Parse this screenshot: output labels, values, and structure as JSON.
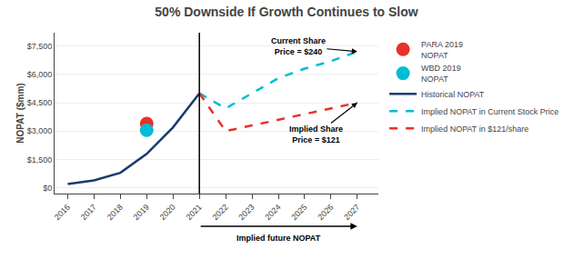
{
  "chart_data": {
    "type": "line",
    "title": "50% Downside If Growth Continues to Slow",
    "ylabel": "NOPAT ($mm)",
    "series": [
      {
        "name": "PARA 2019\nNOPAT",
        "type": "scatter",
        "marker": "circle",
        "color": "#e8312a",
        "x": [
          2019
        ],
        "values": [
          3400
        ]
      },
      {
        "name": "WBD 2019\nNOPAT",
        "type": "scatter",
        "marker": "circle",
        "color": "#00bcd4",
        "x": [
          2019
        ],
        "values": [
          3050
        ]
      },
      {
        "name": "Historical NOPAT",
        "type": "line",
        "line_style": "solid",
        "color": "#1a3a6b",
        "x": [
          2016,
          2017,
          2018,
          2019,
          2020,
          2021
        ],
        "values": [
          200,
          400,
          800,
          1800,
          3200,
          5000
        ]
      },
      {
        "name": "Implied NOPAT in Current Stock Price",
        "type": "line",
        "line_style": "dashed",
        "color": "#00bcd4",
        "x": [
          2021,
          2022,
          2023,
          2024,
          2025,
          2026,
          2027
        ],
        "values": [
          5000,
          4200,
          5000,
          5800,
          6300,
          6700,
          7200
        ]
      },
      {
        "name": "Implied NOPAT in $121/share",
        "type": "line",
        "line_style": "dashed",
        "color": "#e8312a",
        "x": [
          2021,
          2022,
          2023,
          2024,
          2025,
          2026,
          2027
        ],
        "values": [
          5000,
          3000,
          3300,
          3600,
          3900,
          4200,
          4500
        ]
      }
    ],
    "vline": 2021,
    "annotations": [
      {
        "text": "Current Share\nPrice = $240",
        "x": 2027,
        "y": 7200
      },
      {
        "text": "Implied Share\nPrice = $121",
        "x": 2027,
        "y": 4500
      },
      {
        "text": "Implied future NOPAT",
        "x": [
          2021,
          2027
        ]
      }
    ],
    "xlim": [
      2015.5,
      2027.8
    ],
    "xticks": [
      2016,
      2017,
      2018,
      2019,
      2020,
      2021,
      2022,
      2023,
      2024,
      2025,
      2026,
      2027
    ],
    "ylim": [
      -300,
      8200
    ],
    "yticks": [
      {
        "value": 0,
        "label": "$0"
      },
      {
        "value": 1500,
        "label": "$1,500"
      },
      {
        "value": 3000,
        "label": "$3,000"
      },
      {
        "value": 4500,
        "label": "$4,500"
      },
      {
        "value": 6000,
        "label": "$6,000"
      },
      {
        "value": 7500,
        "label": "$7,500"
      }
    ],
    "grid": true,
    "legend": "right"
  }
}
